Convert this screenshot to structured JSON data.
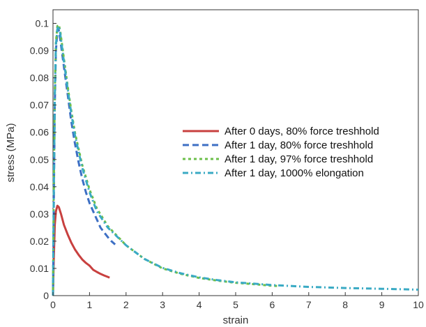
{
  "chart_data": {
    "type": "line",
    "title": "",
    "xlabel": "strain",
    "ylabel": "stress (MPa)",
    "xlim": [
      0,
      10
    ],
    "ylim": [
      0,
      0.105
    ],
    "x_ticks": [
      0,
      1,
      2,
      3,
      4,
      5,
      6,
      7,
      8,
      9,
      10
    ],
    "y_ticks": [
      0,
      0.01,
      0.02,
      0.03,
      0.04,
      0.05,
      0.06,
      0.07,
      0.08,
      0.09,
      0.1
    ],
    "x_tick_labels": [
      "0",
      "1",
      "2",
      "3",
      "4",
      "5",
      "6",
      "7",
      "8",
      "9",
      "10"
    ],
    "y_tick_labels": [
      "0",
      "0.01",
      "0.02",
      "0.03",
      "0.04",
      "0.05",
      "0.06",
      "0.07",
      "0.08",
      "0.09",
      "0.1"
    ],
    "grid": false,
    "legend_position": "right",
    "series": [
      {
        "name": "After 0 days, 80% force treshhold",
        "color": "#c8403f",
        "style": "solid",
        "x": [
          0,
          0.02,
          0.05,
          0.08,
          0.12,
          0.16,
          0.22,
          0.3,
          0.4,
          0.5,
          0.6,
          0.7,
          0.8,
          0.9,
          1.0,
          1.1,
          1.2,
          1.3,
          1.4,
          1.5,
          1.55
        ],
        "y": [
          0,
          0.012,
          0.026,
          0.031,
          0.033,
          0.0325,
          0.03,
          0.026,
          0.0225,
          0.0195,
          0.017,
          0.015,
          0.0133,
          0.012,
          0.011,
          0.0095,
          0.0087,
          0.008,
          0.0074,
          0.0069,
          0.0066
        ]
      },
      {
        "name": "After 1 day, 80% force treshhold",
        "color": "#3d6fc4",
        "style": "dashed",
        "x": [
          0,
          0.02,
          0.05,
          0.08,
          0.12,
          0.15,
          0.2,
          0.3,
          0.4,
          0.5,
          0.6,
          0.7,
          0.8,
          0.9,
          1.0,
          1.1,
          1.2,
          1.3,
          1.4,
          1.5,
          1.6,
          1.7
        ],
        "y": [
          0,
          0.03,
          0.07,
          0.09,
          0.097,
          0.098,
          0.094,
          0.084,
          0.074,
          0.064,
          0.056,
          0.049,
          0.043,
          0.038,
          0.034,
          0.031,
          0.028,
          0.025,
          0.0232,
          0.0215,
          0.02,
          0.0188
        ]
      },
      {
        "name": "After 1 day, 97% force treshhold",
        "color": "#6cbf4a",
        "style": "dotted",
        "x": [
          0,
          0.02,
          0.05,
          0.08,
          0.12,
          0.16,
          0.2,
          0.3,
          0.4,
          0.5,
          0.6,
          0.8,
          1.0,
          1.2,
          1.5,
          2.0,
          2.5,
          3.0,
          3.5,
          4.0,
          4.5,
          5.0,
          5.5,
          6.0,
          6.2
        ],
        "y": [
          0,
          0.035,
          0.075,
          0.093,
          0.099,
          0.0995,
          0.097,
          0.087,
          0.077,
          0.068,
          0.06,
          0.048,
          0.039,
          0.032,
          0.0255,
          0.0185,
          0.0135,
          0.01,
          0.008,
          0.0065,
          0.0055,
          0.0047,
          0.0042,
          0.0036,
          0.0035
        ]
      },
      {
        "name": "After 1 day, 1000% elongation",
        "color": "#3aaac4",
        "style": "dashdot",
        "x": [
          0,
          0.02,
          0.05,
          0.08,
          0.12,
          0.16,
          0.2,
          0.3,
          0.4,
          0.5,
          0.6,
          0.8,
          1.0,
          1.2,
          1.5,
          2.0,
          2.5,
          3.0,
          3.5,
          4.0,
          4.5,
          5.0,
          6.0,
          7.0,
          8.0,
          9.0,
          10.0
        ],
        "y": [
          0,
          0.033,
          0.073,
          0.092,
          0.098,
          0.099,
          0.096,
          0.086,
          0.076,
          0.067,
          0.059,
          0.047,
          0.038,
          0.031,
          0.025,
          0.0185,
          0.0135,
          0.0102,
          0.0082,
          0.0067,
          0.0057,
          0.0049,
          0.0039,
          0.0032,
          0.0028,
          0.0025,
          0.0022
        ]
      }
    ]
  }
}
